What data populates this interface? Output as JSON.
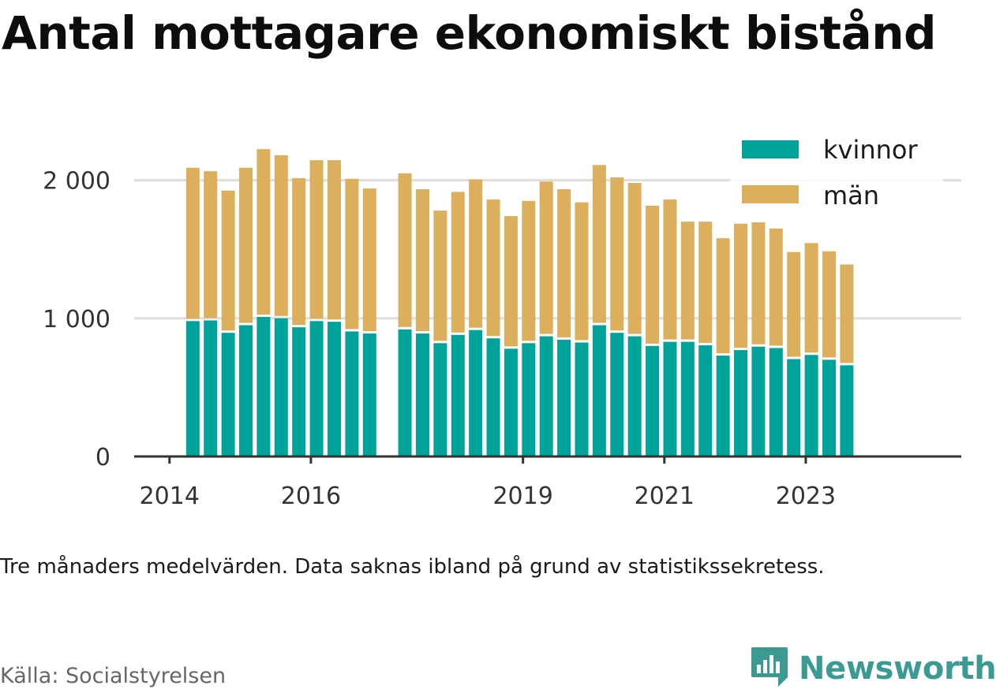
{
  "title": "Antal mottagare ekonomiskt bistånd",
  "note": "Tre månaders medelvärden. Data saknas ibland på grund av statistikssekretess.",
  "source": "Källa: Socialstyrelsen",
  "brand": "Newsworthy",
  "colors": {
    "kvinnor": "#00a39a",
    "man": "#dcaf5c",
    "grid": "#dddddd",
    "axis": "#333333",
    "brand": "#3b9b93"
  },
  "chart_data": {
    "type": "bar",
    "stacked": true,
    "x_ticks": [
      {
        "label": "2014",
        "x": 2014.0
      },
      {
        "label": "2016",
        "x": 2016.0
      },
      {
        "label": "2019",
        "x": 2019.0
      },
      {
        "label": "2021",
        "x": 2021.0
      },
      {
        "label": "2023",
        "x": 2023.0
      }
    ],
    "xlim": [
      2013.5,
      2025.2
    ],
    "y_ticks": [
      {
        "label": "0",
        "value": 0
      },
      {
        "label": "1 000",
        "value": 1000
      },
      {
        "label": "2 000",
        "value": 2000
      }
    ],
    "ylim": [
      0,
      2300
    ],
    "grid": true,
    "legend_position": "top-right",
    "x": [
      2014.33,
      2014.58,
      2014.83,
      2015.08,
      2015.33,
      2015.58,
      2015.83,
      2016.08,
      2016.33,
      2016.58,
      2016.83,
      2017.33,
      2017.58,
      2017.83,
      2018.08,
      2018.33,
      2018.58,
      2018.83,
      2019.08,
      2019.33,
      2019.58,
      2019.83,
      2020.08,
      2020.33,
      2020.58,
      2020.83,
      2021.08,
      2021.33,
      2021.58,
      2021.83,
      2022.08,
      2022.33,
      2022.58,
      2022.83,
      2023.08,
      2023.33,
      2023.58
    ],
    "series": [
      {
        "name": "kvinnor",
        "values": [
          980,
          985,
          895,
          950,
          1010,
          1000,
          935,
          980,
          975,
          905,
          890,
          920,
          890,
          820,
          880,
          915,
          855,
          780,
          820,
          870,
          845,
          825,
          950,
          895,
          870,
          800,
          830,
          830,
          805,
          730,
          770,
          795,
          785,
          705,
          735,
          700,
          660
        ]
      },
      {
        "name": "män",
        "values": [
          1110,
          1080,
          1030,
          1140,
          1215,
          1180,
          1080,
          1165,
          1170,
          1105,
          1050,
          1130,
          1045,
          960,
          1035,
          1090,
          1005,
          960,
          1030,
          1120,
          1090,
          1015,
          1160,
          1125,
          1110,
          1015,
          1030,
          870,
          895,
          850,
          915,
          900,
          865,
          775,
          810,
          785,
          730
        ]
      }
    ]
  }
}
